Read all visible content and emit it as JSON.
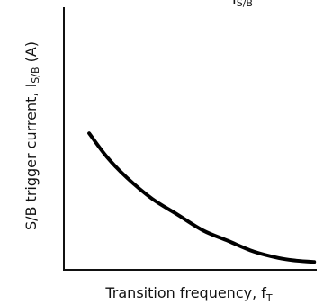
{
  "colors": {
    "axis": "#111111",
    "curve": "#000000",
    "background": "#ffffff"
  },
  "chart_data": {
    "type": "line",
    "title": "",
    "xlabel": "Transition frequency, f",
    "xlabel_subscript": "T",
    "ylabel": "S/B trigger current, I",
    "ylabel_subscript": "S/B",
    "ylabel_unit": " (A)",
    "top_fragment_main": "I",
    "top_fragment_sub": "S/B",
    "xlim": [
      0,
      1
    ],
    "ylim": [
      0,
      1
    ],
    "grid": false,
    "legend": "none",
    "series": [
      {
        "x": [
          0.1,
          0.17,
          0.25,
          0.35,
          0.45,
          0.55,
          0.65,
          0.75,
          0.85,
          0.92,
          0.99
        ],
        "y": [
          0.52,
          0.43,
          0.35,
          0.27,
          0.21,
          0.15,
          0.11,
          0.07,
          0.045,
          0.035,
          0.03
        ]
      }
    ]
  }
}
